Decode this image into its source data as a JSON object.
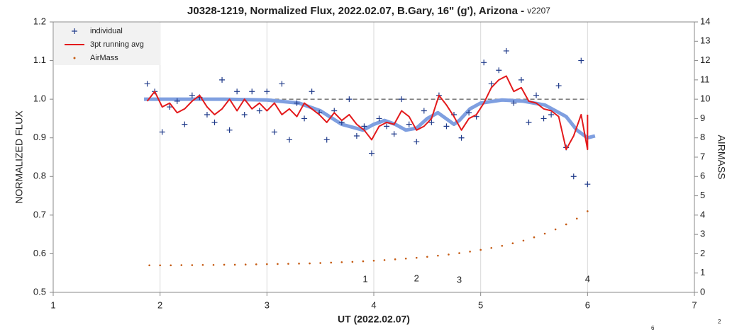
{
  "chart_data": {
    "type": "scatter",
    "title": "J0328-1219, Normalized Flux, 2022.02.07, B.Gary, 16\" (g'), Arizona - ",
    "title_suffix": "v2207",
    "x_label": "UT (2022.02.07)",
    "y_label": "NORMALIZED FLUX",
    "y2_label": "AIRMASS",
    "xlim": [
      1,
      7
    ],
    "xticks": [
      1,
      2,
      3,
      4,
      5,
      6,
      7
    ],
    "ylim": [
      0.5,
      1.2
    ],
    "yticks": [
      0.5,
      0.6,
      0.7,
      0.8,
      0.9,
      {
        "value": 1,
        "label": "1.0"
      },
      1.1,
      1.2
    ],
    "y2lim": [
      0,
      14
    ],
    "y2ticks": [
      0,
      1,
      2,
      3,
      4,
      5,
      6,
      7,
      8,
      9,
      10,
      11,
      12,
      13,
      14
    ],
    "grid": "x",
    "legend": "top-left",
    "reference_line": {
      "value": 1,
      "color": "#808080"
    },
    "series": [
      {
        "name": "individual",
        "color": "#1f3a8a",
        "marker": "plus",
        "x": [
          1.88,
          1.95,
          2.02,
          2.09,
          2.16,
          2.23,
          2.3,
          2.37,
          2.44,
          2.51,
          2.58,
          2.65,
          2.72,
          2.79,
          2.86,
          2.93,
          3.0,
          3.07,
          3.14,
          3.21,
          3.28,
          3.35,
          3.42,
          3.49,
          3.56,
          3.63,
          3.7,
          3.77,
          3.84,
          3.91,
          3.98,
          4.05,
          4.12,
          4.19,
          4.26,
          4.33,
          4.4,
          4.47,
          4.54,
          4.61,
          4.68,
          4.75,
          4.82,
          4.89,
          4.96,
          5.03,
          5.1,
          5.17,
          5.24,
          5.31,
          5.38,
          5.45,
          5.52,
          5.59,
          5.66,
          5.73,
          5.8,
          5.87,
          5.94,
          6.0
        ],
        "values": [
          1.04,
          1.02,
          0.915,
          0.98,
          0.995,
          0.935,
          1.01,
          1.005,
          0.96,
          0.94,
          1.05,
          0.92,
          1.02,
          0.96,
          1.02,
          0.97,
          1.02,
          0.915,
          1.04,
          0.895,
          0.99,
          0.95,
          1.02,
          0.965,
          0.895,
          0.97,
          0.94,
          1.0,
          0.905,
          0.93,
          0.86,
          0.95,
          0.93,
          0.91,
          1.0,
          0.935,
          0.89,
          0.97,
          0.94,
          1.01,
          0.93,
          0.96,
          0.9,
          0.965,
          0.955,
          1.095,
          1.04,
          1.075,
          1.125,
          0.99,
          1.05,
          0.94,
          1.01,
          0.95,
          0.96,
          1.035,
          0.875,
          0.8,
          1.1,
          0.78
        ]
      },
      {
        "name": "3pt running avg",
        "color": "#e31a1c",
        "marker": "line",
        "x": [
          1.88,
          1.95,
          2.02,
          2.09,
          2.16,
          2.23,
          2.3,
          2.37,
          2.44,
          2.51,
          2.58,
          2.65,
          2.72,
          2.79,
          2.86,
          2.93,
          3.0,
          3.07,
          3.14,
          3.21,
          3.28,
          3.35,
          3.42,
          3.49,
          3.56,
          3.63,
          3.7,
          3.77,
          3.84,
          3.91,
          3.98,
          4.05,
          4.12,
          4.19,
          4.26,
          4.33,
          4.4,
          4.47,
          4.54,
          4.61,
          4.68,
          4.75,
          4.82,
          4.89,
          4.96,
          5.03,
          5.1,
          5.17,
          5.24,
          5.31,
          5.38,
          5.45,
          5.52,
          5.59,
          5.66,
          5.73,
          5.8,
          5.87,
          5.94,
          6.0,
          6.0
        ],
        "values": [
          0.995,
          1.02,
          0.98,
          0.99,
          0.965,
          0.975,
          0.995,
          1.01,
          0.98,
          0.96,
          0.975,
          1.0,
          0.97,
          1.0,
          0.975,
          0.99,
          0.97,
          0.99,
          0.96,
          0.975,
          0.955,
          0.99,
          0.975,
          0.96,
          0.94,
          0.965,
          0.945,
          0.96,
          0.935,
          0.92,
          0.895,
          0.93,
          0.94,
          0.935,
          0.97,
          0.955,
          0.92,
          0.93,
          0.95,
          1.01,
          0.985,
          0.955,
          0.92,
          0.95,
          0.96,
          0.99,
          1.03,
          1.05,
          1.06,
          1.02,
          1.03,
          0.995,
          0.99,
          0.975,
          0.97,
          0.955,
          0.87,
          0.905,
          0.96,
          0.87,
          0.96
        ]
      },
      {
        "name": "AirMass",
        "color": "#c55a11",
        "marker": "dot",
        "axis": "y2",
        "x": [
          1.9,
          2.0,
          2.1,
          2.2,
          2.3,
          2.4,
          2.5,
          2.6,
          2.7,
          2.8,
          2.9,
          3.0,
          3.1,
          3.2,
          3.3,
          3.4,
          3.5,
          3.6,
          3.7,
          3.8,
          3.9,
          4.0,
          4.1,
          4.2,
          4.3,
          4.4,
          4.5,
          4.6,
          4.7,
          4.8,
          4.9,
          5.0,
          5.1,
          5.2,
          5.3,
          5.4,
          5.5,
          5.6,
          5.7,
          5.8,
          5.9,
          6.0
        ],
        "values": [
          1.4,
          1.4,
          1.4,
          1.41,
          1.41,
          1.42,
          1.42,
          1.43,
          1.43,
          1.44,
          1.45,
          1.46,
          1.47,
          1.48,
          1.49,
          1.5,
          1.52,
          1.54,
          1.56,
          1.58,
          1.61,
          1.64,
          1.67,
          1.71,
          1.75,
          1.79,
          1.84,
          1.9,
          1.96,
          2.03,
          2.11,
          2.2,
          2.3,
          2.41,
          2.54,
          2.68,
          2.85,
          3.04,
          3.26,
          3.52,
          3.82,
          4.2
        ]
      }
    ],
    "model_curve": {
      "color": "#7f9fe0",
      "x": [
        1.85,
        2.2,
        2.6,
        3.0,
        3.3,
        3.5,
        3.7,
        3.9,
        4.0,
        4.1,
        4.2,
        4.3,
        4.4,
        4.5,
        4.6,
        4.7,
        4.75,
        4.8,
        4.9,
        5.0,
        5.2,
        5.4,
        5.6,
        5.8,
        5.9,
        6.0,
        6.07
      ],
      "values": [
        1.0,
        1.0,
        1.0,
        0.998,
        0.99,
        0.97,
        0.935,
        0.92,
        0.935,
        0.945,
        0.935,
        0.92,
        0.925,
        0.95,
        0.965,
        0.945,
        0.935,
        0.945,
        0.975,
        0.99,
        0.998,
        0.995,
        0.985,
        0.955,
        0.92,
        0.9,
        0.905
      ]
    },
    "annotations": [
      {
        "text": "1",
        "x": 3.92,
        "y": 0.533
      },
      {
        "text": "2",
        "x": 4.4,
        "y": 0.535
      },
      {
        "text": "3",
        "x": 4.8,
        "y": 0.531
      },
      {
        "text": "4",
        "x": 6.0,
        "y": 0.533
      }
    ],
    "footnotes": [
      "6",
      "2"
    ]
  }
}
